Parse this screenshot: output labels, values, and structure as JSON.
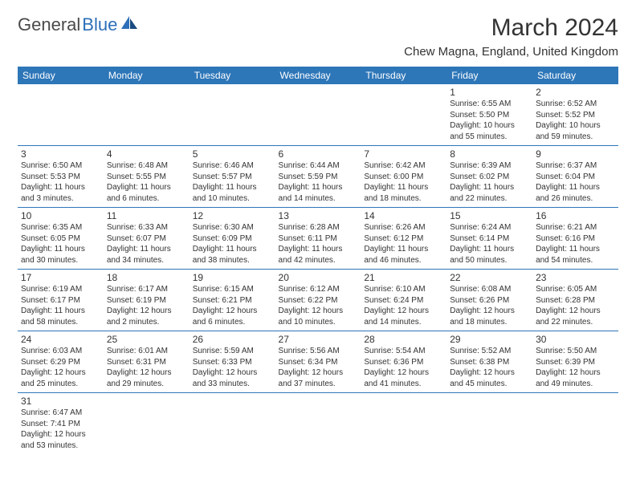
{
  "logo": {
    "text1": "General",
    "text2": "Blue"
  },
  "title": "March 2024",
  "location": "Chew Magna, England, United Kingdom",
  "colors": {
    "header_bg": "#2d76b8",
    "header_text": "#ffffff",
    "border": "#2d76b8",
    "text": "#333333",
    "logo_dark": "#4a4a4a",
    "logo_blue": "#2d6fb8",
    "background": "#ffffff"
  },
  "typography": {
    "title_fontsize": 30,
    "location_fontsize": 15,
    "dayhead_fontsize": 12,
    "daynum_fontsize": 12,
    "info_fontsize": 10
  },
  "dayNames": [
    "Sunday",
    "Monday",
    "Tuesday",
    "Wednesday",
    "Thursday",
    "Friday",
    "Saturday"
  ],
  "weeks": [
    [
      null,
      null,
      null,
      null,
      null,
      {
        "n": "1",
        "sr": "Sunrise: 6:55 AM",
        "ss": "Sunset: 5:50 PM",
        "dl": "Daylight: 10 hours and 55 minutes."
      },
      {
        "n": "2",
        "sr": "Sunrise: 6:52 AM",
        "ss": "Sunset: 5:52 PM",
        "dl": "Daylight: 10 hours and 59 minutes."
      }
    ],
    [
      {
        "n": "3",
        "sr": "Sunrise: 6:50 AM",
        "ss": "Sunset: 5:53 PM",
        "dl": "Daylight: 11 hours and 3 minutes."
      },
      {
        "n": "4",
        "sr": "Sunrise: 6:48 AM",
        "ss": "Sunset: 5:55 PM",
        "dl": "Daylight: 11 hours and 6 minutes."
      },
      {
        "n": "5",
        "sr": "Sunrise: 6:46 AM",
        "ss": "Sunset: 5:57 PM",
        "dl": "Daylight: 11 hours and 10 minutes."
      },
      {
        "n": "6",
        "sr": "Sunrise: 6:44 AM",
        "ss": "Sunset: 5:59 PM",
        "dl": "Daylight: 11 hours and 14 minutes."
      },
      {
        "n": "7",
        "sr": "Sunrise: 6:42 AM",
        "ss": "Sunset: 6:00 PM",
        "dl": "Daylight: 11 hours and 18 minutes."
      },
      {
        "n": "8",
        "sr": "Sunrise: 6:39 AM",
        "ss": "Sunset: 6:02 PM",
        "dl": "Daylight: 11 hours and 22 minutes."
      },
      {
        "n": "9",
        "sr": "Sunrise: 6:37 AM",
        "ss": "Sunset: 6:04 PM",
        "dl": "Daylight: 11 hours and 26 minutes."
      }
    ],
    [
      {
        "n": "10",
        "sr": "Sunrise: 6:35 AM",
        "ss": "Sunset: 6:05 PM",
        "dl": "Daylight: 11 hours and 30 minutes."
      },
      {
        "n": "11",
        "sr": "Sunrise: 6:33 AM",
        "ss": "Sunset: 6:07 PM",
        "dl": "Daylight: 11 hours and 34 minutes."
      },
      {
        "n": "12",
        "sr": "Sunrise: 6:30 AM",
        "ss": "Sunset: 6:09 PM",
        "dl": "Daylight: 11 hours and 38 minutes."
      },
      {
        "n": "13",
        "sr": "Sunrise: 6:28 AM",
        "ss": "Sunset: 6:11 PM",
        "dl": "Daylight: 11 hours and 42 minutes."
      },
      {
        "n": "14",
        "sr": "Sunrise: 6:26 AM",
        "ss": "Sunset: 6:12 PM",
        "dl": "Daylight: 11 hours and 46 minutes."
      },
      {
        "n": "15",
        "sr": "Sunrise: 6:24 AM",
        "ss": "Sunset: 6:14 PM",
        "dl": "Daylight: 11 hours and 50 minutes."
      },
      {
        "n": "16",
        "sr": "Sunrise: 6:21 AM",
        "ss": "Sunset: 6:16 PM",
        "dl": "Daylight: 11 hours and 54 minutes."
      }
    ],
    [
      {
        "n": "17",
        "sr": "Sunrise: 6:19 AM",
        "ss": "Sunset: 6:17 PM",
        "dl": "Daylight: 11 hours and 58 minutes."
      },
      {
        "n": "18",
        "sr": "Sunrise: 6:17 AM",
        "ss": "Sunset: 6:19 PM",
        "dl": "Daylight: 12 hours and 2 minutes."
      },
      {
        "n": "19",
        "sr": "Sunrise: 6:15 AM",
        "ss": "Sunset: 6:21 PM",
        "dl": "Daylight: 12 hours and 6 minutes."
      },
      {
        "n": "20",
        "sr": "Sunrise: 6:12 AM",
        "ss": "Sunset: 6:22 PM",
        "dl": "Daylight: 12 hours and 10 minutes."
      },
      {
        "n": "21",
        "sr": "Sunrise: 6:10 AM",
        "ss": "Sunset: 6:24 PM",
        "dl": "Daylight: 12 hours and 14 minutes."
      },
      {
        "n": "22",
        "sr": "Sunrise: 6:08 AM",
        "ss": "Sunset: 6:26 PM",
        "dl": "Daylight: 12 hours and 18 minutes."
      },
      {
        "n": "23",
        "sr": "Sunrise: 6:05 AM",
        "ss": "Sunset: 6:28 PM",
        "dl": "Daylight: 12 hours and 22 minutes."
      }
    ],
    [
      {
        "n": "24",
        "sr": "Sunrise: 6:03 AM",
        "ss": "Sunset: 6:29 PM",
        "dl": "Daylight: 12 hours and 25 minutes."
      },
      {
        "n": "25",
        "sr": "Sunrise: 6:01 AM",
        "ss": "Sunset: 6:31 PM",
        "dl": "Daylight: 12 hours and 29 minutes."
      },
      {
        "n": "26",
        "sr": "Sunrise: 5:59 AM",
        "ss": "Sunset: 6:33 PM",
        "dl": "Daylight: 12 hours and 33 minutes."
      },
      {
        "n": "27",
        "sr": "Sunrise: 5:56 AM",
        "ss": "Sunset: 6:34 PM",
        "dl": "Daylight: 12 hours and 37 minutes."
      },
      {
        "n": "28",
        "sr": "Sunrise: 5:54 AM",
        "ss": "Sunset: 6:36 PM",
        "dl": "Daylight: 12 hours and 41 minutes."
      },
      {
        "n": "29",
        "sr": "Sunrise: 5:52 AM",
        "ss": "Sunset: 6:38 PM",
        "dl": "Daylight: 12 hours and 45 minutes."
      },
      {
        "n": "30",
        "sr": "Sunrise: 5:50 AM",
        "ss": "Sunset: 6:39 PM",
        "dl": "Daylight: 12 hours and 49 minutes."
      }
    ],
    [
      {
        "n": "31",
        "sr": "Sunrise: 6:47 AM",
        "ss": "Sunset: 7:41 PM",
        "dl": "Daylight: 12 hours and 53 minutes."
      },
      null,
      null,
      null,
      null,
      null,
      null
    ]
  ]
}
